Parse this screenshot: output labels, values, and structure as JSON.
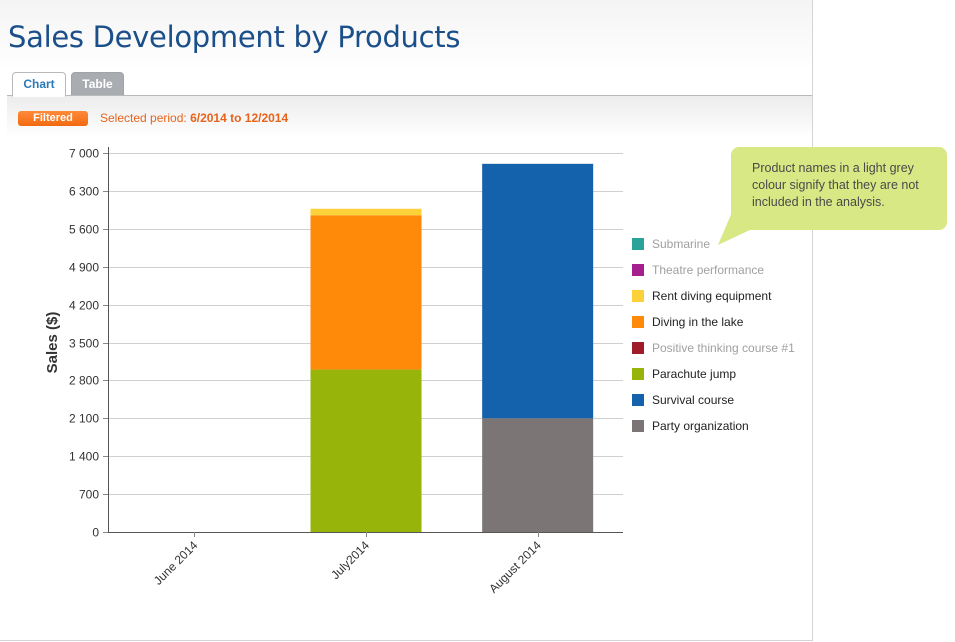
{
  "page": {
    "title": "Sales Development by Products",
    "tabs": [
      {
        "label": "Chart",
        "active": true
      },
      {
        "label": "Table",
        "active": false
      }
    ],
    "filter": {
      "badge": "Filtered",
      "period_label": "Selected period:",
      "period_value": "6/2014 to 12/2014"
    },
    "callout": "Product names in a light grey colour signify that they are not included in the analysis."
  },
  "chart_data": {
    "type": "bar",
    "stacked": true,
    "ylabel": "Sales ($)",
    "xlabel": "",
    "ylim": [
      0,
      7000
    ],
    "yticks": [
      0,
      700,
      1400,
      2100,
      2800,
      3500,
      4200,
      4900,
      5600,
      6300,
      7000
    ],
    "ytick_labels": [
      "0",
      "700",
      "1 400",
      "2 100",
      "2 800",
      "3 500",
      "4 200",
      "4 900",
      "5 600",
      "6 300",
      "7 000"
    ],
    "grid": true,
    "legend_position": "right",
    "categories": [
      "June 2014",
      "July 2014",
      "August 2014"
    ],
    "category_labels": [
      "June 2014",
      "July2014",
      "August 2014"
    ],
    "series": [
      {
        "name": "Submarine",
        "color": "#2aa39a",
        "excluded": true,
        "values": [
          0,
          0,
          0
        ]
      },
      {
        "name": "Theatre performance",
        "color": "#a51f8f",
        "excluded": true,
        "values": [
          0,
          0,
          0
        ]
      },
      {
        "name": "Rent diving equipment",
        "color": "#fdd13a",
        "excluded": false,
        "values": [
          0,
          120,
          0
        ]
      },
      {
        "name": "Diving in the lake",
        "color": "#ff8a0a",
        "excluded": false,
        "values": [
          0,
          2850,
          0
        ]
      },
      {
        "name": "Positive thinking course #1",
        "color": "#a01c2a",
        "excluded": true,
        "values": [
          0,
          0,
          0
        ]
      },
      {
        "name": "Parachute jump",
        "color": "#96b40a",
        "excluded": false,
        "values": [
          0,
          3000,
          0
        ]
      },
      {
        "name": "Survival course",
        "color": "#1462ab",
        "excluded": false,
        "values": [
          0,
          0,
          4700
        ]
      },
      {
        "name": "Party organization",
        "color": "#7c7576",
        "excluded": false,
        "values": [
          0,
          0,
          2100
        ]
      }
    ],
    "stack_order_bottom_to_top": [
      "Party organization",
      "Survival course",
      "Parachute jump",
      "Positive thinking course #1",
      "Diving in the lake",
      "Rent diving equipment",
      "Theatre performance",
      "Submarine"
    ]
  }
}
